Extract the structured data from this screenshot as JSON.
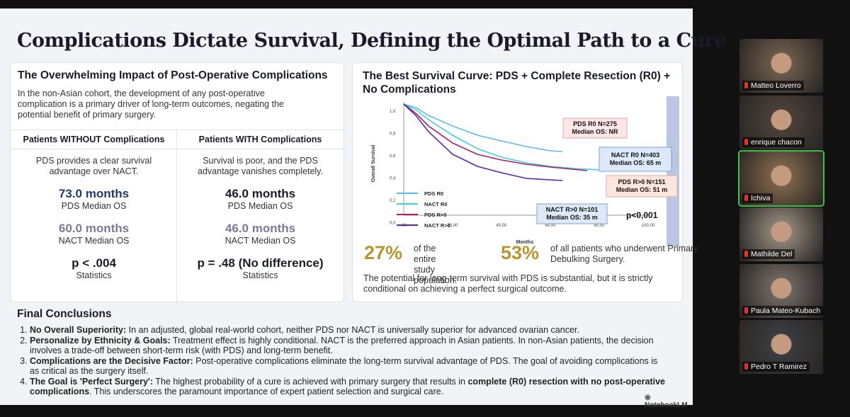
{
  "slide": {
    "title": "Complications Dictate Survival, Defining the Optimal Path to a Cure",
    "left_panel": {
      "heading": "The Overwhelming Impact of Post-Operative Complications",
      "intro": "In the non-Asian cohort, the development of any post-operative complication is a primary driver of long-term outcomes, negating the potential benefit of primary surgery.",
      "columns": [
        {
          "header": "Patients WITHOUT Complications",
          "description": "PDS provides a clear survival advantage over NACT.",
          "metrics": [
            {
              "value": "73.0 months",
              "label": "PDS Median OS"
            },
            {
              "value": "60.0 months",
              "label": "NACT Median OS"
            },
            {
              "value": "p < .004",
              "label": "Statistics"
            }
          ]
        },
        {
          "header": "Patients WITH Complications",
          "description": "Survival is poor, and the PDS advantage vanishes completely.",
          "metrics": [
            {
              "value": "46.0 months",
              "label": "PDS Median OS"
            },
            {
              "value": "46.0 months",
              "label": "NACT Median OS"
            },
            {
              "value": "p = .48 (No difference)",
              "label": "Statistics"
            }
          ]
        }
      ]
    },
    "right_panel": {
      "heading": "The Best Survival Curve: PDS + Complete Resection (R0) + No Complications",
      "chart": {
        "y_axis_label": "Overall Survival",
        "x_axis_label": "Months",
        "yticks": [
          "1,0",
          "0,8",
          "0,6",
          "0,4",
          "0,2",
          "0,0"
        ],
        "xticks": [
          ",00",
          "20,00",
          "40,00",
          "60,00",
          "80,00",
          "100,00"
        ],
        "legend": [
          "PDS R0",
          "NACT R0",
          "PDS R>0",
          "NACT R>0"
        ],
        "boxes": [
          [
            "PDS  R0 N=275",
            "Median OS: NR"
          ],
          [
            "NACT R0 N=403",
            "Median OS: 65 m"
          ],
          [
            "PDS  R>0 N=151",
            "Median OS: 51 m"
          ],
          [
            "NACT R>0 N=101",
            "Median OS: 35  m"
          ]
        ],
        "p_value": "p<0,001"
      },
      "stats": [
        {
          "value": "27%",
          "text": "of the entire study population."
        },
        {
          "value": "53%",
          "text": "of all patients who underwent Primary Debulking Surgery."
        }
      ],
      "footer": "The potential for long-term survival with PDS is substantial, but it is strictly conditional on achieving a perfect surgical outcome."
    },
    "conclusions": {
      "heading": "Final Conclusions",
      "items": [
        {
          "lead": "No Overall Superiority:",
          "text": " In an adjusted, global real-world cohort, neither PDS nor NACT is universally superior for advanced ovarian cancer."
        },
        {
          "lead": "Personalize by Ethnicity & Goals:",
          "text": " Treatment effect is highly conditional. NACT is the preferred approach in Asian patients. In non-Asian patients, the decision involves a trade-off between short-term risk (with PDS) and long-term benefit."
        },
        {
          "lead": "Complications are the Decisive Factor:",
          "text": " Post-operative complications eliminate the long-term survival advantage of PDS. The goal of avoiding complications is as critical as the surgery itself."
        },
        {
          "lead": "The Goal is 'Perfect Surgery':",
          "text": " The highest probability of a cure is achieved with primary surgery that results in ",
          "emphasis": "complete (R0) resection with no post-operative complications",
          "tail": ". This underscores the paramount importance of expert patient selection and surgical care."
        }
      ]
    },
    "brand": "NotebookLM"
  },
  "meeting": {
    "participants": [
      "Matteo Loverro",
      "enrique chacon",
      "Ichiva",
      "Mathilde Del",
      "Paula Mateo-Kubach",
      "Pedro T Ramirez"
    ]
  }
}
